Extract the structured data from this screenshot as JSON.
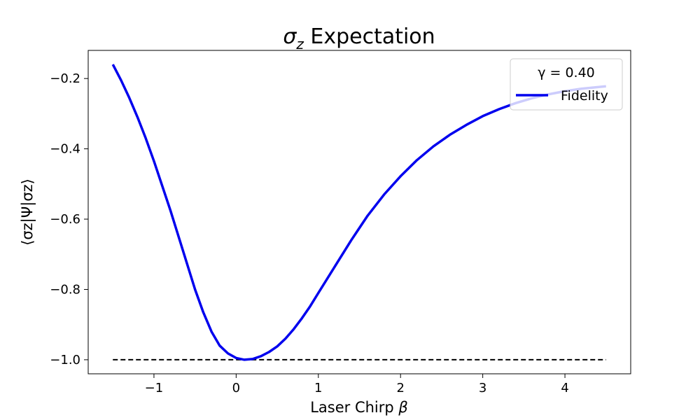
{
  "chart_data": {
    "type": "line",
    "title_symbol": "σ",
    "title_subscript": "z",
    "title_rest": " Expectation",
    "xlabel_text": "Laser Chirp ",
    "xlabel_symbol": "β",
    "ylabel": "⟨σz|Ψ|σz⟩",
    "xlim": [
      -1.8,
      4.8
    ],
    "ylim": [
      -1.04,
      -0.12
    ],
    "xticks": [
      -1,
      0,
      1,
      2,
      3,
      4
    ],
    "xtick_labels": [
      "−1",
      "0",
      "1",
      "2",
      "3",
      "4"
    ],
    "yticks": [
      -1.0,
      -0.8,
      -0.6,
      -0.4,
      -0.2
    ],
    "ytick_labels": [
      "−1.0",
      "−0.8",
      "−0.6",
      "−0.4",
      "−0.2"
    ],
    "grid": false,
    "legend_placement": "top-right",
    "legend_title": "γ = 0.40",
    "series": [
      {
        "name": "Fidelity",
        "color": "#0000ee",
        "style": "solid",
        "x": [
          -1.5,
          -1.4,
          -1.3,
          -1.2,
          -1.1,
          -1.0,
          -0.9,
          -0.8,
          -0.7,
          -0.6,
          -0.5,
          -0.4,
          -0.3,
          -0.2,
          -0.1,
          0.0,
          0.1,
          0.2,
          0.3,
          0.4,
          0.5,
          0.6,
          0.7,
          0.8,
          0.9,
          1.0,
          1.2,
          1.4,
          1.6,
          1.8,
          2.0,
          2.2,
          2.4,
          2.6,
          2.8,
          3.0,
          3.2,
          3.4,
          3.6,
          3.8,
          4.0,
          4.2,
          4.5
        ],
        "y": [
          -0.16,
          -0.205,
          -0.255,
          -0.31,
          -0.37,
          -0.435,
          -0.505,
          -0.575,
          -0.65,
          -0.725,
          -0.8,
          -0.865,
          -0.92,
          -0.96,
          -0.982,
          -0.995,
          -1.0,
          -0.998,
          -0.99,
          -0.978,
          -0.962,
          -0.94,
          -0.913,
          -0.882,
          -0.848,
          -0.81,
          -0.735,
          -0.66,
          -0.59,
          -0.53,
          -0.478,
          -0.432,
          -0.393,
          -0.36,
          -0.332,
          -0.307,
          -0.287,
          -0.27,
          -0.256,
          -0.245,
          -0.236,
          -0.229,
          -0.222
        ]
      },
      {
        "color": "#000000",
        "style": "dashed",
        "x": [
          -1.5,
          4.5
        ],
        "y": [
          -1.0,
          -1.0
        ]
      }
    ]
  }
}
